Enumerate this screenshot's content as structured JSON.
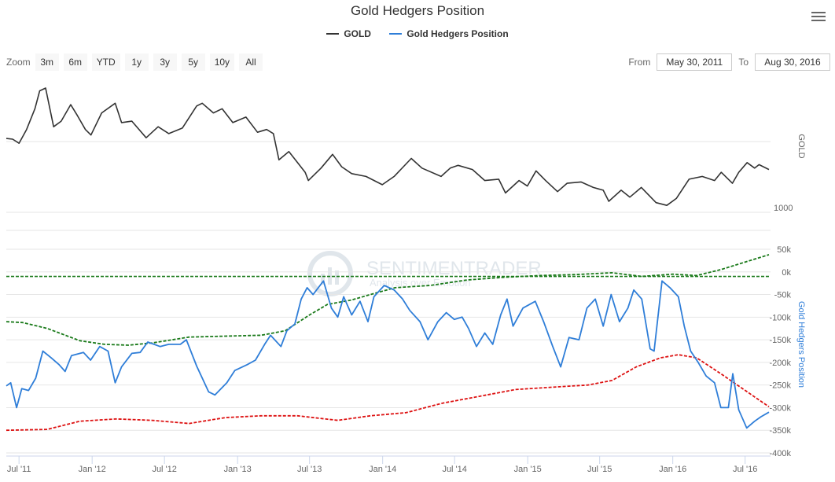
{
  "title": "Gold Hedgers Position",
  "legend": [
    {
      "name": "GOLD",
      "color": "#333333"
    },
    {
      "name": "Gold Hedgers Position",
      "color": "#2f7ed8"
    }
  ],
  "zoom": {
    "label": "Zoom",
    "buttons": [
      "3m",
      "6m",
      "YTD",
      "1y",
      "3y",
      "5y",
      "10y",
      "All"
    ]
  },
  "range": {
    "from_label": "From",
    "from_value": "May 30, 2011",
    "to_label": "To",
    "to_value": "Aug 30, 2016"
  },
  "watermark": {
    "brand": "SENTIMENTRADER",
    "tagline": "Analysis over Emotion"
  },
  "colors": {
    "gold": "#333333",
    "hedgers": "#2f7ed8",
    "upper_band": "#1a7a1a",
    "lower_band": "#dd1111",
    "zero_line": "#1a7a1a"
  },
  "chart_data": {
    "type": "line",
    "x_range": [
      "2011-05-30",
      "2016-08-30"
    ],
    "x_ticks": [
      "Jul '11",
      "Jan '12",
      "Jul '12",
      "Jan '13",
      "Jul '13",
      "Jan '14",
      "Jul '14",
      "Jan '15",
      "Jul '15",
      "Jan '16",
      "Jul '16"
    ],
    "gold_panel": {
      "ylabel": "GOLD",
      "y_ticks": [
        "1000"
      ],
      "series": {
        "name": "GOLD",
        "points": [
          [
            "2011-05-30",
            1535
          ],
          [
            "2011-06-15",
            1530
          ],
          [
            "2011-07-01",
            1500
          ],
          [
            "2011-07-20",
            1600
          ],
          [
            "2011-08-10",
            1750
          ],
          [
            "2011-08-22",
            1880
          ],
          [
            "2011-09-06",
            1900
          ],
          [
            "2011-09-26",
            1620
          ],
          [
            "2011-10-15",
            1660
          ],
          [
            "2011-11-08",
            1780
          ],
          [
            "2011-11-25",
            1700
          ],
          [
            "2011-12-15",
            1600
          ],
          [
            "2011-12-29",
            1560
          ],
          [
            "2012-01-25",
            1720
          ],
          [
            "2012-02-28",
            1790
          ],
          [
            "2012-03-15",
            1650
          ],
          [
            "2012-04-10",
            1660
          ],
          [
            "2012-05-16",
            1540
          ],
          [
            "2012-06-15",
            1620
          ],
          [
            "2012-07-12",
            1570
          ],
          [
            "2012-08-15",
            1610
          ],
          [
            "2012-09-20",
            1770
          ],
          [
            "2012-10-04",
            1790
          ],
          [
            "2012-11-01",
            1720
          ],
          [
            "2012-11-23",
            1750
          ],
          [
            "2012-12-20",
            1650
          ],
          [
            "2013-01-22",
            1690
          ],
          [
            "2013-02-20",
            1580
          ],
          [
            "2013-03-15",
            1600
          ],
          [
            "2013-04-01",
            1570
          ],
          [
            "2013-04-15",
            1380
          ],
          [
            "2013-05-10",
            1440
          ],
          [
            "2013-06-20",
            1290
          ],
          [
            "2013-06-28",
            1230
          ],
          [
            "2013-07-30",
            1320
          ],
          [
            "2013-08-28",
            1420
          ],
          [
            "2013-09-20",
            1330
          ],
          [
            "2013-10-15",
            1280
          ],
          [
            "2013-11-20",
            1260
          ],
          [
            "2013-12-31",
            1200
          ],
          [
            "2014-01-30",
            1260
          ],
          [
            "2014-03-14",
            1390
          ],
          [
            "2014-04-10",
            1320
          ],
          [
            "2014-05-28",
            1260
          ],
          [
            "2014-06-20",
            1320
          ],
          [
            "2014-07-10",
            1340
          ],
          [
            "2014-08-15",
            1310
          ],
          [
            "2014-09-15",
            1230
          ],
          [
            "2014-10-20",
            1240
          ],
          [
            "2014-11-06",
            1140
          ],
          [
            "2014-12-10",
            1230
          ],
          [
            "2014-12-31",
            1190
          ],
          [
            "2015-01-22",
            1300
          ],
          [
            "2015-02-15",
            1230
          ],
          [
            "2015-03-17",
            1150
          ],
          [
            "2015-04-10",
            1210
          ],
          [
            "2015-05-15",
            1220
          ],
          [
            "2015-06-15",
            1180
          ],
          [
            "2015-07-10",
            1160
          ],
          [
            "2015-07-24",
            1080
          ],
          [
            "2015-08-24",
            1160
          ],
          [
            "2015-09-15",
            1110
          ],
          [
            "2015-10-14",
            1180
          ],
          [
            "2015-11-20",
            1070
          ],
          [
            "2015-12-17",
            1050
          ],
          [
            "2016-01-10",
            1100
          ],
          [
            "2016-02-11",
            1240
          ],
          [
            "2016-03-15",
            1260
          ],
          [
            "2016-04-15",
            1230
          ],
          [
            "2016-05-02",
            1290
          ],
          [
            "2016-05-30",
            1210
          ],
          [
            "2016-06-15",
            1290
          ],
          [
            "2016-07-06",
            1360
          ],
          [
            "2016-07-25",
            1320
          ],
          [
            "2016-08-05",
            1345
          ],
          [
            "2016-08-30",
            1310
          ]
        ]
      }
    },
    "hedgers_panel": {
      "ylabel": "Gold Hedgers Position",
      "y_ticks": [
        50000,
        0,
        -50000,
        -100000,
        -150000,
        -200000,
        -250000,
        -300000,
        -350000,
        -400000
      ],
      "y_tick_labels": [
        "50k",
        "0k",
        "-50k",
        "-100k",
        "-150k",
        "-200k",
        "-250k",
        "-300k",
        "-350k",
        "-400k"
      ],
      "ylim": [
        -400000,
        50000
      ],
      "series": [
        {
          "name": "Gold Hedgers Position",
          "points": [
            [
              "2011-05-30",
              -252000
            ],
            [
              "2011-06-10",
              -245000
            ],
            [
              "2011-06-25",
              -300000
            ],
            [
              "2011-07-08",
              -258000
            ],
            [
              "2011-07-25",
              -262000
            ],
            [
              "2011-08-12",
              -235000
            ],
            [
              "2011-08-30",
              -175000
            ],
            [
              "2011-09-20",
              -190000
            ],
            [
              "2011-10-10",
              -205000
            ],
            [
              "2011-10-25",
              -220000
            ],
            [
              "2011-11-10",
              -185000
            ],
            [
              "2011-12-10",
              -178000
            ],
            [
              "2011-12-28",
              -195000
            ],
            [
              "2012-01-20",
              -165000
            ],
            [
              "2012-02-10",
              -175000
            ],
            [
              "2012-02-28",
              -245000
            ],
            [
              "2012-03-15",
              -210000
            ],
            [
              "2012-04-10",
              -180000
            ],
            [
              "2012-05-01",
              -178000
            ],
            [
              "2012-05-20",
              -155000
            ],
            [
              "2012-06-20",
              -165000
            ],
            [
              "2012-07-12",
              -160000
            ],
            [
              "2012-08-10",
              -160000
            ],
            [
              "2012-08-25",
              -150000
            ],
            [
              "2012-09-20",
              -208000
            ],
            [
              "2012-10-20",
              -265000
            ],
            [
              "2012-11-05",
              -272000
            ],
            [
              "2012-12-05",
              -245000
            ],
            [
              "2012-12-25",
              -218000
            ],
            [
              "2013-01-25",
              -205000
            ],
            [
              "2013-02-15",
              -195000
            ],
            [
              "2013-03-10",
              -160000
            ],
            [
              "2013-03-25",
              -140000
            ],
            [
              "2013-04-20",
              -165000
            ],
            [
              "2013-05-05",
              -130000
            ],
            [
              "2013-05-25",
              -115000
            ],
            [
              "2013-06-10",
              -60000
            ],
            [
              "2013-06-25",
              -35000
            ],
            [
              "2013-07-10",
              -50000
            ],
            [
              "2013-08-05",
              -20000
            ],
            [
              "2013-08-25",
              -80000
            ],
            [
              "2013-09-10",
              -100000
            ],
            [
              "2013-09-25",
              -55000
            ],
            [
              "2013-10-15",
              -95000
            ],
            [
              "2013-11-05",
              -65000
            ],
            [
              "2013-11-25",
              -110000
            ],
            [
              "2013-12-10",
              -55000
            ],
            [
              "2014-01-05",
              -30000
            ],
            [
              "2014-01-30",
              -40000
            ],
            [
              "2014-02-20",
              -60000
            ],
            [
              "2014-03-10",
              -85000
            ],
            [
              "2014-04-05",
              -110000
            ],
            [
              "2014-04-25",
              -150000
            ],
            [
              "2014-05-20",
              -110000
            ],
            [
              "2014-06-10",
              -90000
            ],
            [
              "2014-06-30",
              -105000
            ],
            [
              "2014-07-20",
              -100000
            ],
            [
              "2014-08-05",
              -125000
            ],
            [
              "2014-08-25",
              -165000
            ],
            [
              "2014-09-15",
              -135000
            ],
            [
              "2014-10-05",
              -160000
            ],
            [
              "2014-10-25",
              -95000
            ],
            [
              "2014-11-10",
              -60000
            ],
            [
              "2014-11-25",
              -120000
            ],
            [
              "2014-12-20",
              -80000
            ],
            [
              "2015-01-20",
              -65000
            ],
            [
              "2015-02-10",
              -110000
            ],
            [
              "2015-03-05",
              -165000
            ],
            [
              "2015-03-25",
              -210000
            ],
            [
              "2015-04-15",
              -145000
            ],
            [
              "2015-05-10",
              -150000
            ],
            [
              "2015-05-30",
              -80000
            ],
            [
              "2015-06-20",
              -60000
            ],
            [
              "2015-07-10",
              -120000
            ],
            [
              "2015-07-30",
              -50000
            ],
            [
              "2015-08-20",
              -110000
            ],
            [
              "2015-09-10",
              -80000
            ],
            [
              "2015-09-25",
              -40000
            ],
            [
              "2015-10-15",
              -60000
            ],
            [
              "2015-11-05",
              -170000
            ],
            [
              "2015-11-15",
              -175000
            ],
            [
              "2015-12-05",
              -20000
            ],
            [
              "2015-12-25",
              -35000
            ],
            [
              "2016-01-15",
              -55000
            ],
            [
              "2016-01-30",
              -120000
            ],
            [
              "2016-02-15",
              -175000
            ],
            [
              "2016-03-05",
              -200000
            ],
            [
              "2016-03-25",
              -230000
            ],
            [
              "2016-04-15",
              -245000
            ],
            [
              "2016-05-01",
              -300000
            ],
            [
              "2016-05-20",
              -300000
            ],
            [
              "2016-05-31",
              -225000
            ],
            [
              "2016-06-15",
              -305000
            ],
            [
              "2016-07-05",
              -345000
            ],
            [
              "2016-07-25",
              -330000
            ],
            [
              "2016-08-10",
              -320000
            ],
            [
              "2016-08-30",
              -310000
            ]
          ]
        },
        {
          "name": "upper band",
          "points": [
            [
              "2011-05-30",
              -110000
            ],
            [
              "2011-07-10",
              -112000
            ],
            [
              "2011-09-10",
              -125000
            ],
            [
              "2011-12-01",
              -152000
            ],
            [
              "2012-02-01",
              -160000
            ],
            [
              "2012-04-01",
              -162000
            ],
            [
              "2012-06-01",
              -157000
            ],
            [
              "2012-09-01",
              -144000
            ],
            [
              "2012-12-01",
              -142000
            ],
            [
              "2013-03-01",
              -140000
            ],
            [
              "2013-05-01",
              -130000
            ],
            [
              "2013-07-01",
              -95000
            ],
            [
              "2013-08-15",
              -72000
            ],
            [
              "2013-10-15",
              -62000
            ],
            [
              "2013-12-01",
              -50000
            ],
            [
              "2014-02-01",
              -35000
            ],
            [
              "2014-05-01",
              -30000
            ],
            [
              "2014-08-01",
              -18000
            ],
            [
              "2014-11-01",
              -12000
            ],
            [
              "2015-02-01",
              -8000
            ],
            [
              "2015-05-01",
              -6000
            ],
            [
              "2015-08-01",
              -2000
            ],
            [
              "2015-10-15",
              -10000
            ],
            [
              "2016-01-01",
              -5000
            ],
            [
              "2016-03-01",
              -8000
            ],
            [
              "2016-05-01",
              5000
            ],
            [
              "2016-08-30",
              38000
            ]
          ]
        },
        {
          "name": "lower band",
          "points": [
            [
              "2011-05-30",
              -350000
            ],
            [
              "2011-09-10",
              -348000
            ],
            [
              "2011-12-01",
              -330000
            ],
            [
              "2012-03-01",
              -325000
            ],
            [
              "2012-06-01",
              -328000
            ],
            [
              "2012-09-01",
              -335000
            ],
            [
              "2012-12-01",
              -322000
            ],
            [
              "2013-03-01",
              -318000
            ],
            [
              "2013-06-01",
              -318000
            ],
            [
              "2013-09-10",
              -328000
            ],
            [
              "2013-12-01",
              -318000
            ],
            [
              "2014-03-01",
              -311000
            ],
            [
              "2014-06-01",
              -290000
            ],
            [
              "2014-09-01",
              -275000
            ],
            [
              "2014-12-01",
              -260000
            ],
            [
              "2015-03-01",
              -255000
            ],
            [
              "2015-06-01",
              -250000
            ],
            [
              "2015-08-01",
              -240000
            ],
            [
              "2015-10-01",
              -210000
            ],
            [
              "2015-12-01",
              -190000
            ],
            [
              "2016-01-15",
              -183000
            ],
            [
              "2016-03-01",
              -190000
            ],
            [
              "2016-05-01",
              -225000
            ],
            [
              "2016-08-30",
              -298000
            ]
          ]
        }
      ]
    }
  }
}
